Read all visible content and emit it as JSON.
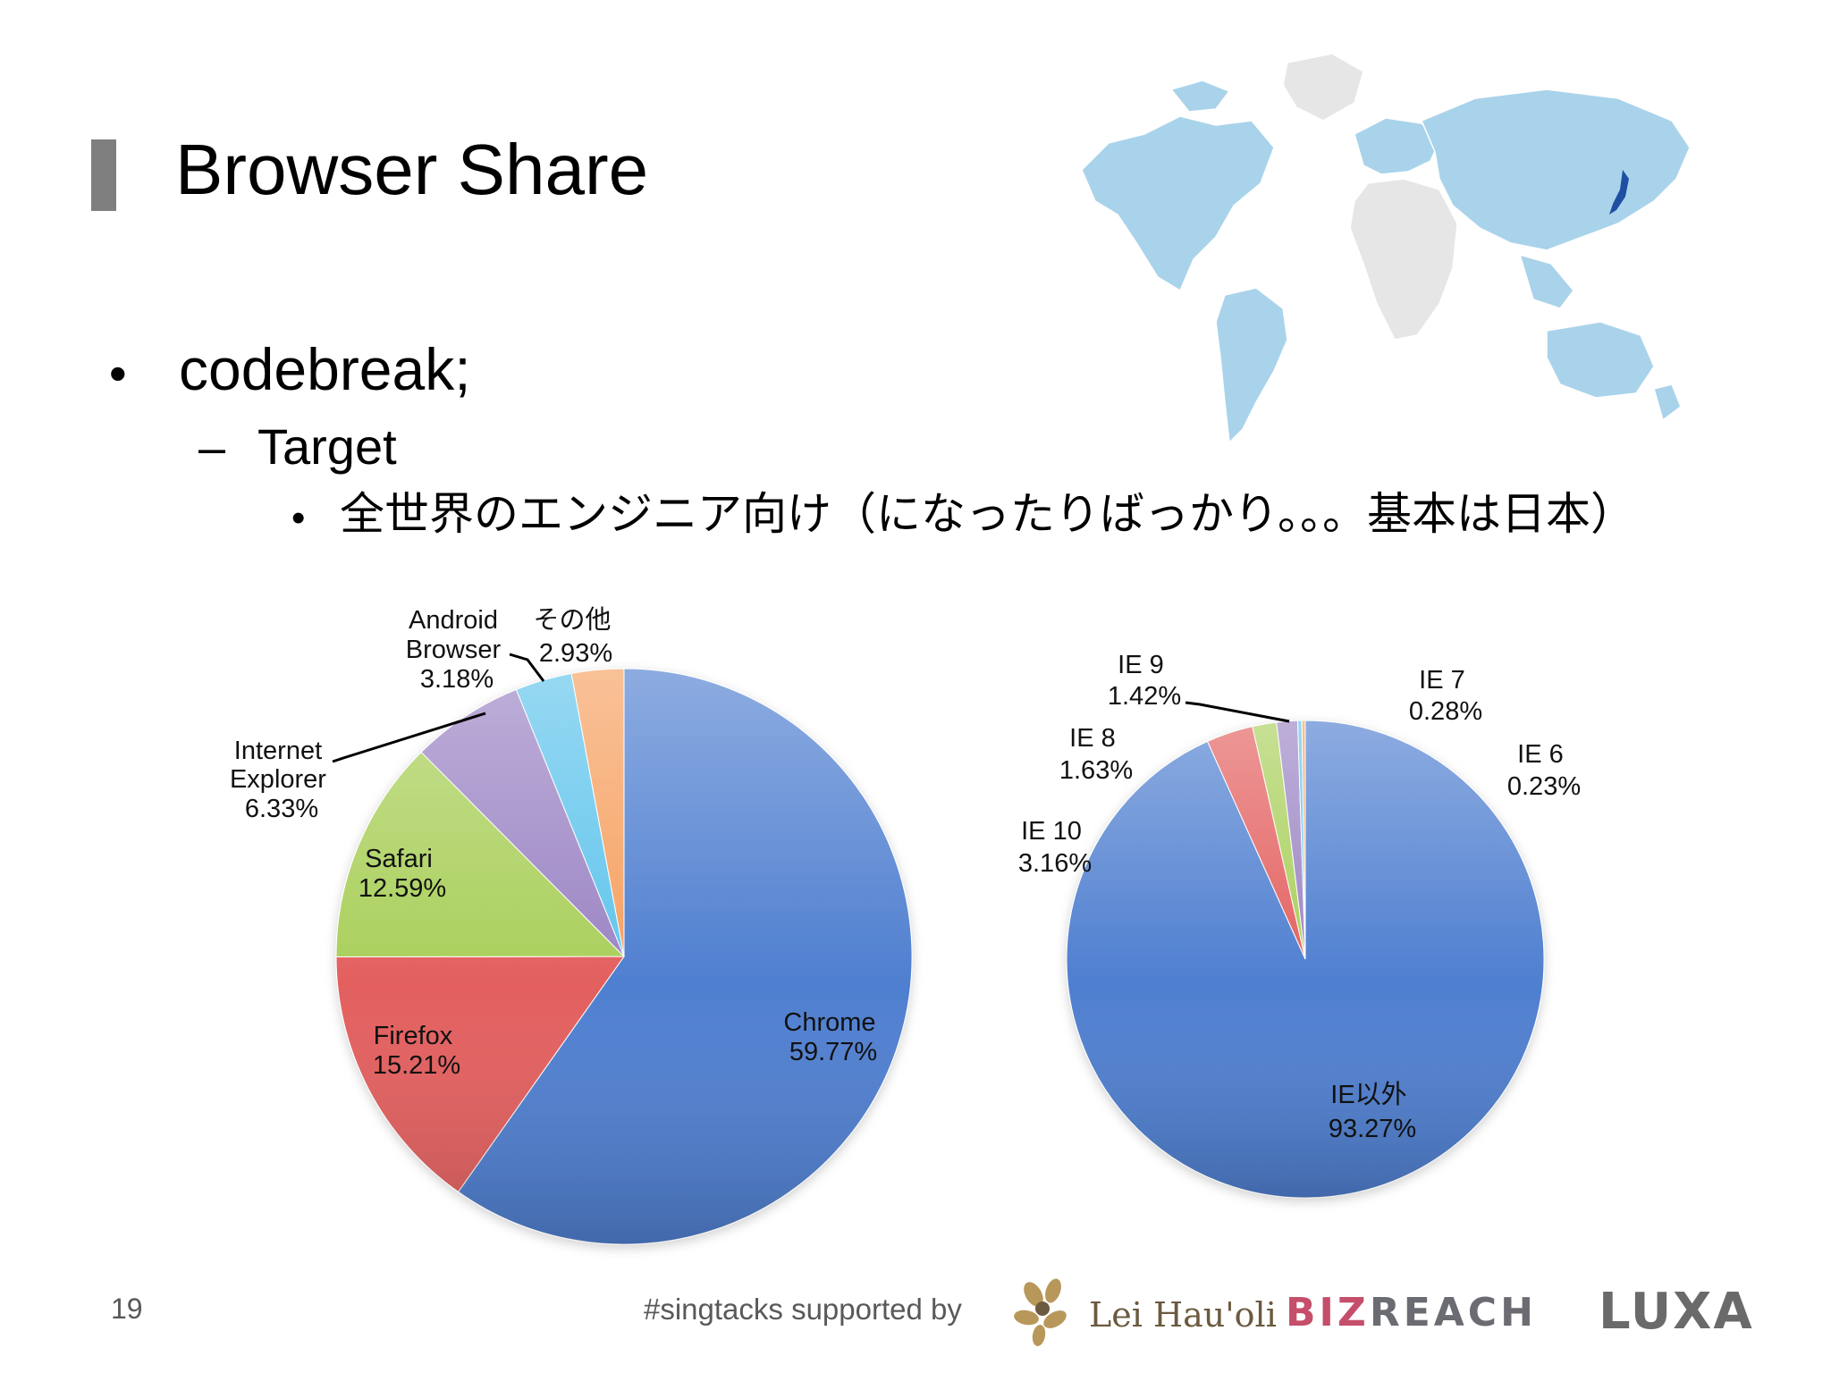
{
  "slide": {
    "title": "Browser Share",
    "bullets": {
      "l1": "codebreak;",
      "l2": "Target",
      "l3": "全世界のエンジニア向け（になったりばっかり。。。基本は日本）",
      "bullet_l1": "•",
      "dash_l2": "–",
      "bullet_l3": "•"
    },
    "page_number": "19",
    "footer": "#singtacks supported by",
    "logos": {
      "lei_hauoli": "Lei Hau'oli",
      "bizreach_left": "BIZ",
      "bizreach_right": "REACH",
      "luxa": "LUXA"
    }
  },
  "chart_data": [
    {
      "type": "pie",
      "title": "",
      "slices": [
        {
          "label": "Chrome",
          "value": 59.77,
          "display": "59.77%",
          "color": "#4f7fd0"
        },
        {
          "label": "Firefox",
          "value": 15.21,
          "display": "15.21%",
          "color": "#e3605f"
        },
        {
          "label": "Safari",
          "value": 12.59,
          "display": "12.59%",
          "color": "#a9cf5a"
        },
        {
          "label": "Internet Explorer",
          "value": 6.33,
          "display": "6.33%",
          "color": "#9b84c4"
        },
        {
          "label": "Android Browser",
          "value": 3.18,
          "display": "3.18%",
          "color": "#5fc4ec"
        },
        {
          "label": "その他",
          "value": 2.93,
          "display": "2.93%",
          "color": "#f6a060"
        }
      ],
      "labels": {
        "chrome": [
          "Chrome",
          "59.77%"
        ],
        "firefox": [
          "Firefox",
          "15.21%"
        ],
        "safari": [
          "Safari",
          "12.59%"
        ],
        "ie": [
          "Internet",
          "Explorer",
          "6.33%"
        ],
        "android": [
          "Android",
          "Browser",
          "3.18%"
        ],
        "other": [
          "その他",
          "2.93%"
        ]
      }
    },
    {
      "type": "pie",
      "title": "",
      "slices": [
        {
          "label": "IE以外",
          "value": 93.27,
          "display": "93.27%",
          "color": "#4f7fd0"
        },
        {
          "label": "IE 10",
          "value": 3.16,
          "display": "3.16%",
          "color": "#e3605f"
        },
        {
          "label": "IE 8",
          "value": 1.63,
          "display": "1.63%",
          "color": "#a9cf5a"
        },
        {
          "label": "IE 9",
          "value": 1.42,
          "display": "1.42%",
          "color": "#9b84c4"
        },
        {
          "label": "IE 7",
          "value": 0.28,
          "display": "0.28%",
          "color": "#5fc4ec"
        },
        {
          "label": "IE 6",
          "value": 0.23,
          "display": "0.23%",
          "color": "#f6a060"
        }
      ],
      "labels": {
        "nonie": [
          "IE以外",
          "93.27%"
        ],
        "ie10": [
          "IE 10",
          "3.16%"
        ],
        "ie8": [
          "IE 8",
          "1.63%"
        ],
        "ie9": [
          "IE 9",
          "1.42%"
        ],
        "ie7": [
          "IE 7",
          "0.28%"
        ],
        "ie6": [
          "IE 6",
          "0.23%"
        ]
      }
    }
  ]
}
